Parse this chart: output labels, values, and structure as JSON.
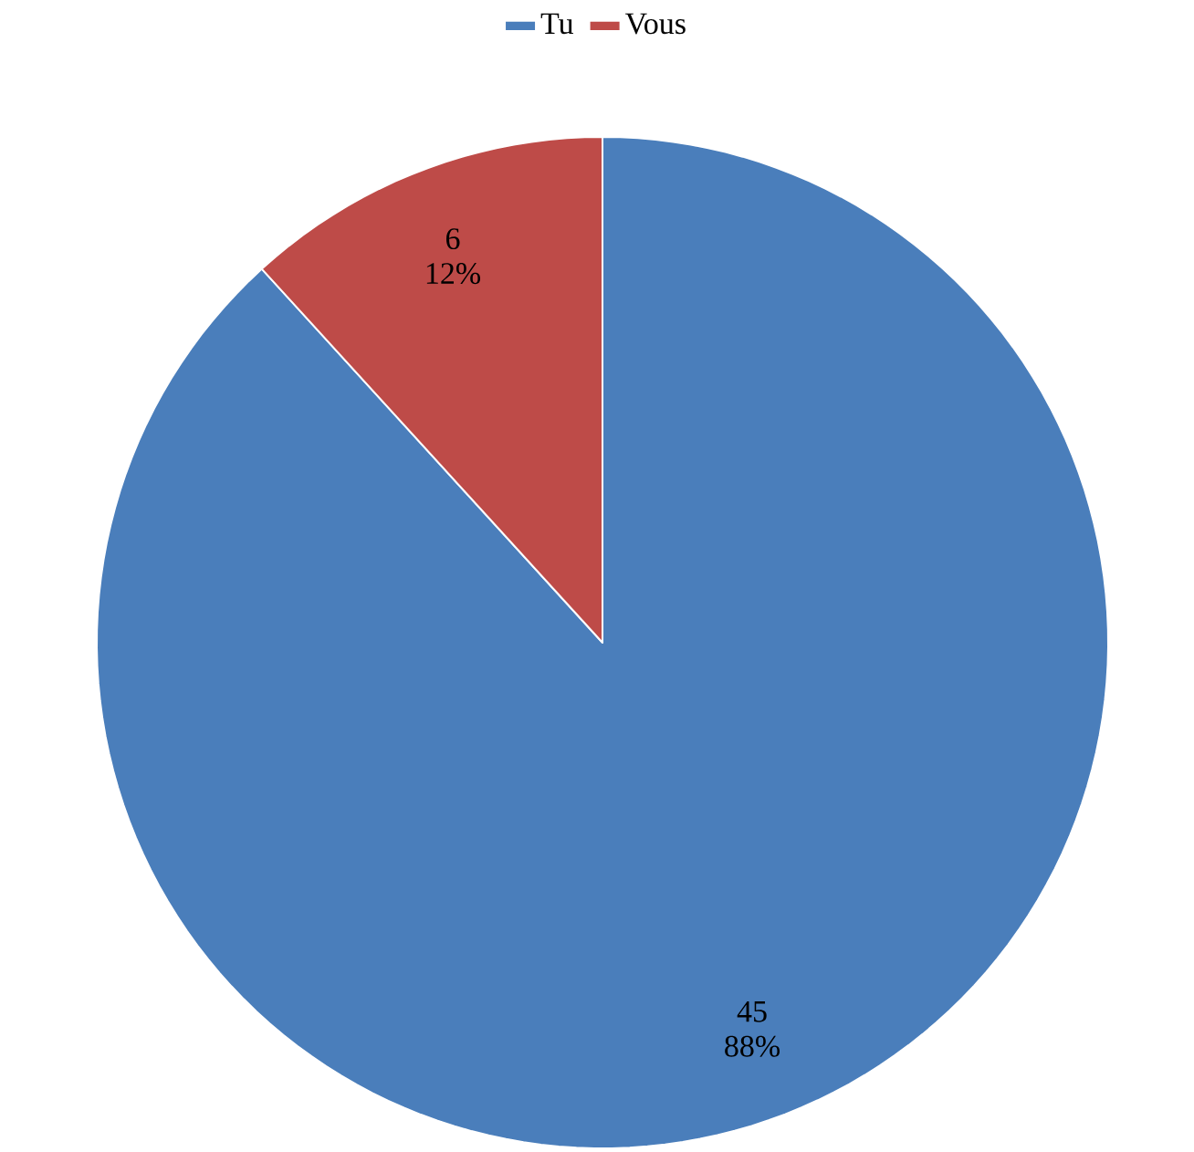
{
  "chart_data": {
    "type": "pie",
    "categories": [
      "Tu",
      "Vous"
    ],
    "values": [
      45,
      6
    ],
    "colors": [
      "#4a7ebb",
      "#be4b48"
    ],
    "value_labels": [
      "45 88%",
      "6 12%"
    ],
    "legend": "top"
  }
}
